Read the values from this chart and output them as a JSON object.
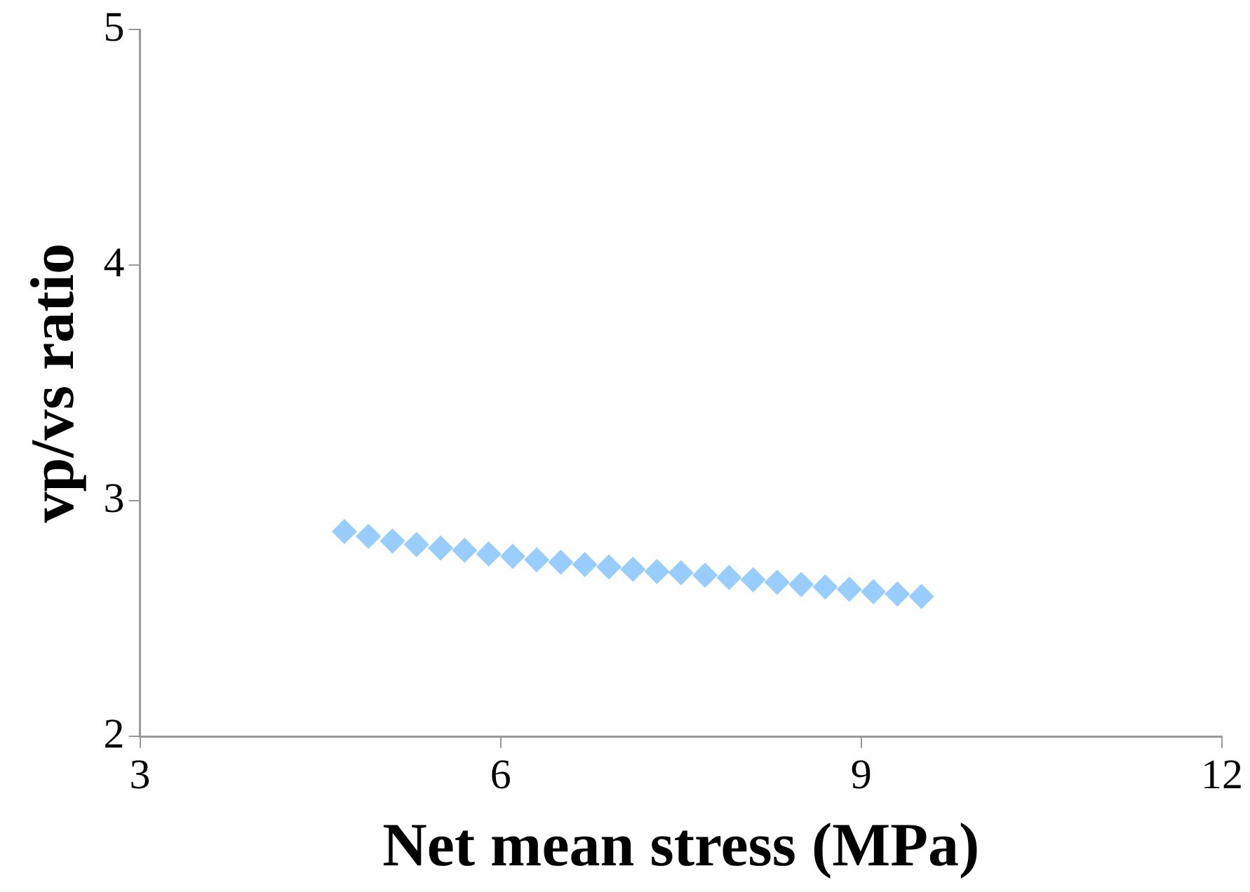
{
  "chart_data": {
    "type": "scatter",
    "xlabel": "Net mean stress (MPa)",
    "ylabel": "vp/vs ratio",
    "x": [
      4.7,
      4.9,
      5.1,
      5.3,
      5.5,
      5.7,
      5.9,
      6.1,
      6.3,
      6.5,
      6.7,
      6.9,
      7.1,
      7.3,
      7.5,
      7.7,
      7.9,
      8.1,
      8.3,
      8.5,
      8.7,
      8.9,
      9.1,
      9.3,
      9.5
    ],
    "series": [
      {
        "color": "#99ccff",
        "values": [
          2.87,
          2.85,
          2.83,
          2.815,
          2.8,
          2.79,
          2.775,
          2.765,
          2.75,
          2.74,
          2.73,
          2.72,
          2.71,
          2.7,
          2.695,
          2.685,
          2.675,
          2.665,
          2.655,
          2.645,
          2.635,
          2.625,
          2.615,
          2.605,
          2.595
        ]
      }
    ],
    "xlim": [
      3,
      12
    ],
    "xticks": [
      3,
      6,
      9,
      12
    ],
    "ylim": [
      2,
      5
    ],
    "yticks": [
      2,
      3,
      4,
      5
    ],
    "grid": false,
    "legend": false,
    "marker": "diamond"
  }
}
